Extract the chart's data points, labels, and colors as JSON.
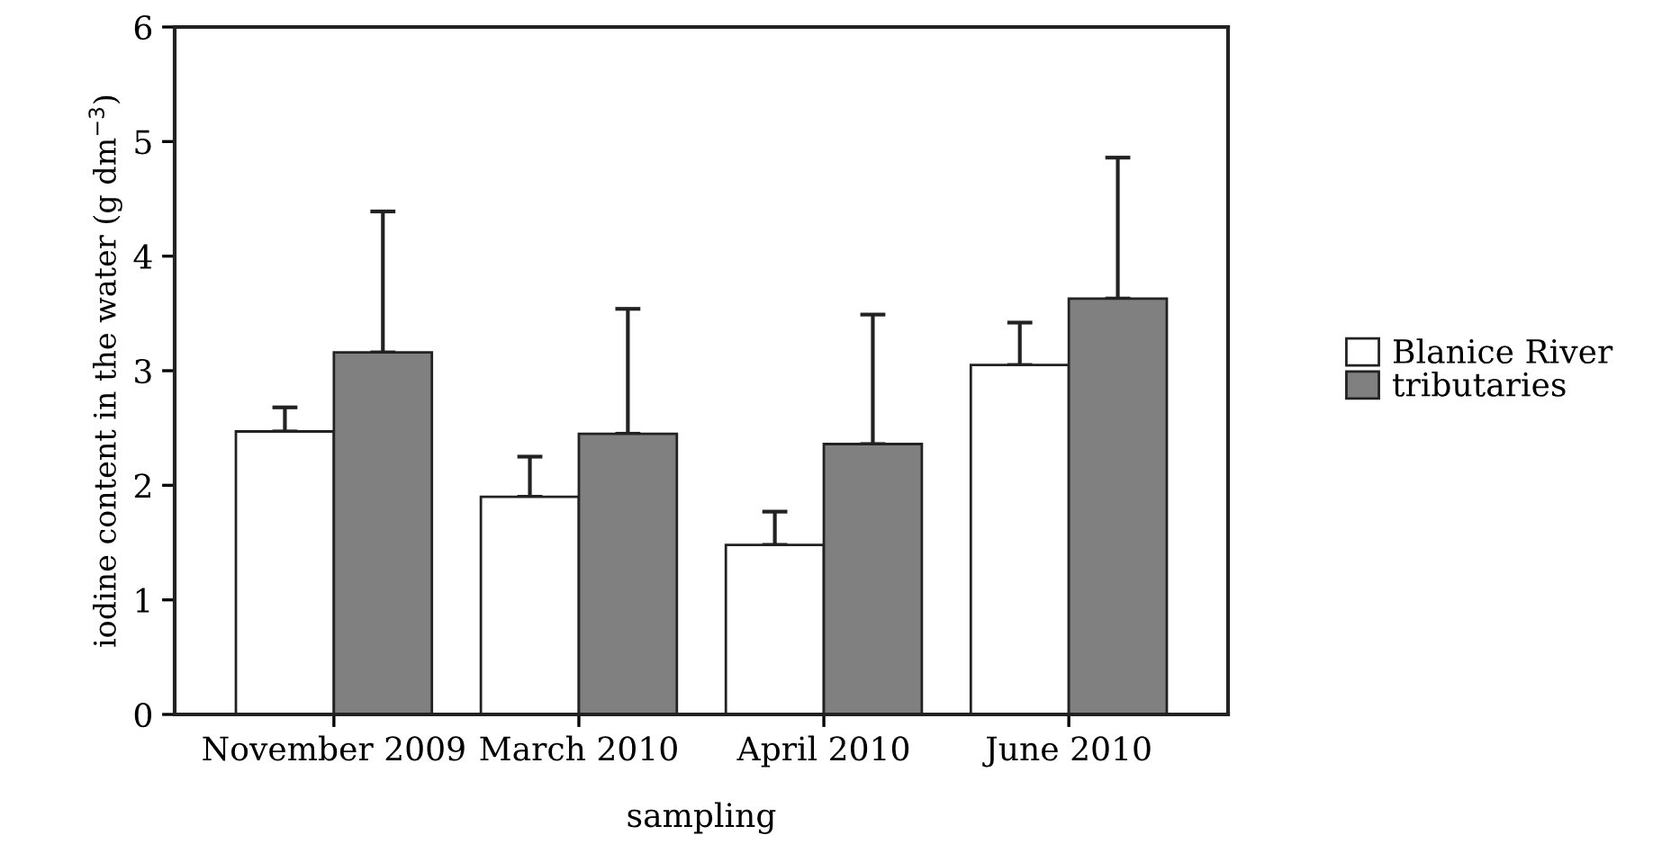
{
  "chart_data": {
    "type": "bar",
    "xlabel": "sampling",
    "ylabel": "iodine content in the water (g dm$^{−3}$)",
    "categories": [
      "November 2009",
      "March 2010",
      "April 2010",
      "June 2010"
    ],
    "series": [
      {
        "name": "Blanice River",
        "color": "#ffffff",
        "values": [
          2.47,
          1.9,
          1.48,
          3.05
        ],
        "errors": [
          [
            2.47,
            2.68
          ],
          [
            1.9,
            2.25
          ],
          [
            1.48,
            1.77
          ],
          [
            3.05,
            3.42
          ]
        ]
      },
      {
        "name": "tributaries",
        "color": "#808080",
        "values": [
          3.16,
          2.45,
          2.36,
          3.63
        ],
        "errors": [
          [
            3.16,
            4.39
          ],
          [
            2.45,
            3.54
          ],
          [
            2.36,
            3.49
          ],
          [
            3.63,
            4.86
          ]
        ]
      }
    ],
    "ylim": [
      0,
      6
    ],
    "yticks": [
      0,
      1,
      2,
      3,
      4,
      5,
      6
    ],
    "grid": false,
    "legend": "right"
  }
}
